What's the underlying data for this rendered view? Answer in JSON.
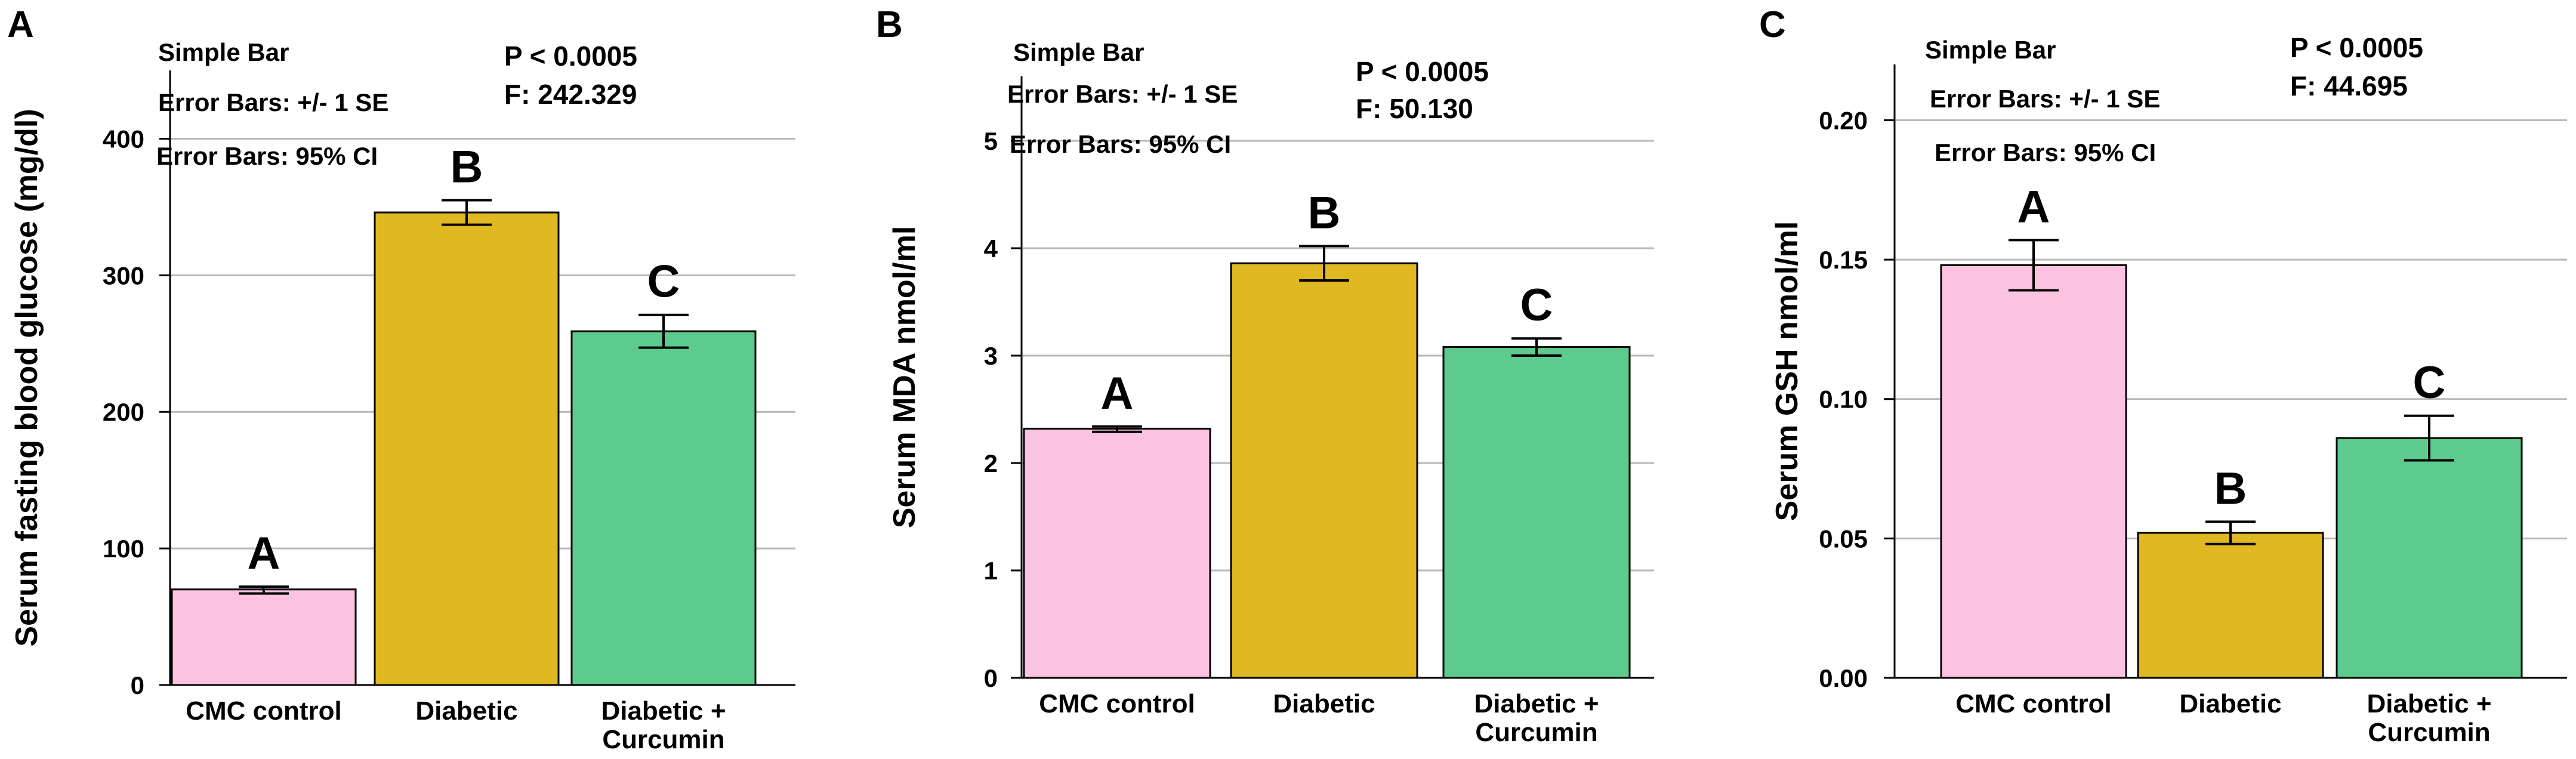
{
  "chart_data": [
    {
      "panel": "A",
      "type": "bar",
      "categories": [
        "CMC control",
        "Diabetic",
        "Diabetic +\nCurcumin"
      ],
      "values": [
        70,
        346,
        259
      ],
      "error_low": [
        67,
        337,
        247
      ],
      "error_high": [
        72,
        355,
        271
      ],
      "letters": [
        "A",
        "B",
        "C"
      ],
      "ylabel": "Serum fasting blood glucose (mg/dl)",
      "ylim": [
        0,
        450
      ],
      "yticks": [
        0,
        100,
        200,
        300,
        400
      ],
      "ytick_labels": [
        "0",
        "100",
        "200",
        "300",
        "400"
      ],
      "info_lines": [
        "Simple Bar",
        "Error Bars: +/- 1 SE",
        "Error Bars: 95% CI"
      ],
      "stats_lines": [
        "P < 0.0005",
        "F: 242.329"
      ],
      "grid": true
    },
    {
      "panel": "B",
      "type": "bar",
      "categories": [
        "CMC control",
        "Diabetic",
        "Diabetic +\nCurcumin"
      ],
      "values": [
        2.32,
        3.86,
        3.08
      ],
      "error_low": [
        2.29,
        3.7,
        3.0
      ],
      "error_high": [
        2.34,
        4.02,
        3.16
      ],
      "letters": [
        "A",
        "B",
        "C"
      ],
      "ylabel": "Serum MDA nmol/ml",
      "ylim": [
        0,
        5.6
      ],
      "yticks": [
        0,
        1,
        2,
        3,
        4,
        5
      ],
      "ytick_labels": [
        "0",
        "1",
        "2",
        "3",
        "4",
        "5"
      ],
      "info_lines": [
        "Simple Bar",
        "Error Bars: +/- 1 SE",
        "Error Bars: 95% CI"
      ],
      "stats_lines": [
        "P < 0.0005",
        "F: 50.130"
      ],
      "grid": true
    },
    {
      "panel": "C",
      "type": "bar",
      "categories": [
        "CMC control",
        "Diabetic",
        "Diabetic +\nCurcumin"
      ],
      "values": [
        0.148,
        0.052,
        0.086
      ],
      "error_low": [
        0.139,
        0.048,
        0.078
      ],
      "error_high": [
        0.157,
        0.056,
        0.094
      ],
      "letters": [
        "A",
        "B",
        "C"
      ],
      "ylabel": "Serum GSH nmol/ml",
      "ylim": [
        0,
        0.22
      ],
      "yticks": [
        0,
        0.05,
        0.1,
        0.15,
        0.2
      ],
      "ytick_labels": [
        "0.00",
        "0.05",
        "0.10",
        "0.15",
        "0.20"
      ],
      "info_lines": [
        "Simple Bar",
        "Error Bars: +/- 1 SE",
        "Error Bars: 95% CI"
      ],
      "stats_lines": [
        "P < 0.0005",
        "F: 44.695"
      ],
      "grid": true
    }
  ],
  "colors": {
    "cmc_control": "#fcc3e1",
    "diabetic": "#dfb822",
    "diabetic_curcumin": "#5ccb8d"
  }
}
